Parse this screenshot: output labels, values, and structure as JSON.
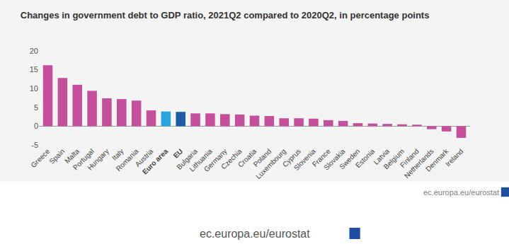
{
  "chart_data": {
    "type": "bar",
    "title": "Changes in government debt to GDP ratio, 2021Q2 compared to 2020Q2, in percentage points",
    "categories": [
      "Greece",
      "Spain",
      "Malta",
      "Portugal",
      "Hungary",
      "Italy",
      "Romania",
      "Austria",
      "Euro area",
      "EU",
      "Bulgaria",
      "Lithuania",
      "Germany",
      "Czechia",
      "Croatia",
      "Poland",
      "Luxembourg",
      "Cyprus",
      "Slovenia",
      "France",
      "Slovakia",
      "Sweden",
      "Estonia",
      "Latvia",
      "Belgium",
      "Finland",
      "Netherlands",
      "Denmark",
      "Ireland"
    ],
    "values": [
      16.2,
      12.8,
      11.0,
      9.4,
      7.4,
      7.2,
      6.8,
      4.2,
      3.9,
      3.8,
      3.4,
      3.4,
      3.2,
      3.1,
      2.8,
      2.7,
      2.1,
      2.1,
      2.0,
      1.6,
      1.4,
      0.8,
      0.7,
      0.6,
      0.5,
      0.4,
      -0.8,
      -1.4,
      -3.1
    ],
    "colors": [
      "#c4509c",
      "#c4509c",
      "#c4509c",
      "#c4509c",
      "#c4509c",
      "#c4509c",
      "#c4509c",
      "#c4509c",
      "#2aa4de",
      "#1f5ca8",
      "#c4509c",
      "#c4509c",
      "#c4509c",
      "#c4509c",
      "#c4509c",
      "#c4509c",
      "#c4509c",
      "#c4509c",
      "#c4509c",
      "#c4509c",
      "#c4509c",
      "#c4509c",
      "#c4509c",
      "#c4509c",
      "#c4509c",
      "#c4509c",
      "#c4509c",
      "#c4509c",
      "#c4509c"
    ],
    "ylim": [
      -5,
      20
    ],
    "yticks": [
      -5,
      0,
      5,
      10,
      15,
      20
    ],
    "grid": false,
    "annotations": [
      "ec.europa.eu/eurostat",
      "ec.europa.eu/eurostat"
    ]
  }
}
